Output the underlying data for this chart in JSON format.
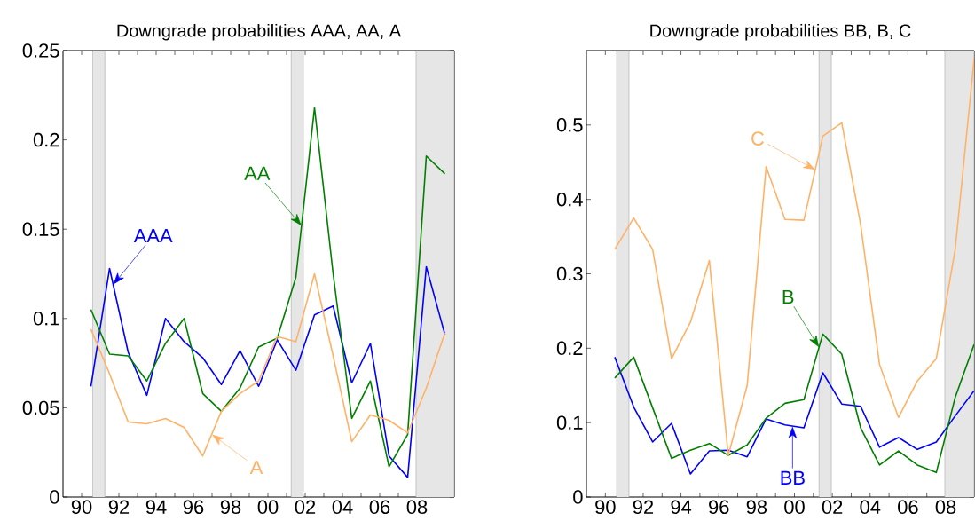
{
  "chart_data": [
    {
      "type": "line",
      "title": "Downgrade probabilities AAA, AA, A",
      "x": [
        1990.5,
        1991.5,
        1992.5,
        1993.5,
        1994.5,
        1995.5,
        1996.5,
        1997.5,
        1998.5,
        1999.5,
        2000.5,
        2001.5,
        2002.5,
        2003.5,
        2004.5,
        2005.5,
        2006.5,
        2007.5,
        2008.5,
        2009.5
      ],
      "series": [
        {
          "color": "#0000ff",
          "values": [
            0.062,
            0.128,
            0.081,
            0.057,
            0.1,
            0.087,
            0.078,
            0.063,
            0.082,
            0.062,
            0.088,
            0.071,
            0.102,
            0.107,
            0.064,
            0.086,
            0.023,
            0.011,
            0.129,
            0.091
          ]
        },
        {
          "color": "#007f00",
          "values": [
            0.105,
            0.08,
            0.079,
            0.065,
            0.086,
            0.1,
            0.058,
            0.048,
            0.061,
            0.084,
            0.089,
            0.123,
            0.218,
            0.125,
            0.044,
            0.065,
            0.017,
            0.035,
            0.191,
            0.181
          ]
        },
        {
          "color": "#ffb266",
          "values": [
            0.094,
            0.069,
            0.042,
            0.041,
            0.044,
            0.039,
            0.023,
            0.048,
            0.058,
            0.065,
            0.09,
            0.087,
            0.125,
            0.079,
            0.031,
            0.046,
            0.043,
            0.036,
            0.061,
            0.092
          ]
        }
      ],
      "xlim": [
        1989,
        2010
      ],
      "ylim": [
        0,
        0.25
      ],
      "xticks": [
        {
          "value": 1990,
          "label": "90"
        },
        {
          "value": 1991,
          "label": null
        },
        {
          "value": 1992,
          "label": "92"
        },
        {
          "value": 1993,
          "label": null
        },
        {
          "value": 1994,
          "label": "94"
        },
        {
          "value": 1995,
          "label": null
        },
        {
          "value": 1996,
          "label": "96"
        },
        {
          "value": 1997,
          "label": null
        },
        {
          "value": 1998,
          "label": "98"
        },
        {
          "value": 1999,
          "label": null
        },
        {
          "value": 2000,
          "label": "00"
        },
        {
          "value": 2001,
          "label": null
        },
        {
          "value": 2002,
          "label": "02"
        },
        {
          "value": 2003,
          "label": null
        },
        {
          "value": 2004,
          "label": "04"
        },
        {
          "value": 2005,
          "label": null
        },
        {
          "value": 2006,
          "label": "06"
        },
        {
          "value": 2007,
          "label": null
        },
        {
          "value": 2008,
          "label": "08"
        },
        {
          "value": 2009,
          "label": null
        }
      ],
      "yticks": [
        0,
        0.05,
        0.1,
        0.15,
        0.2,
        0.25
      ],
      "bands": [
        {
          "axis": "x",
          "from": 1990.6,
          "to": 1991.25,
          "color": "#e6e6e6"
        },
        {
          "axis": "x",
          "from": 2001.25,
          "to": 2001.9,
          "color": "#e6e6e6"
        },
        {
          "axis": "x",
          "from": 2007.95,
          "to": 2010,
          "color": "#e6e6e6"
        }
      ],
      "annotations": [
        {
          "text": "AAA",
          "x": 1991.7,
          "y": 0.119
        },
        {
          "text": "AA",
          "x": 2001.8,
          "y": 0.152
        },
        {
          "text": "A",
          "x": 1997,
          "y": 0.035
        }
      ]
    },
    {
      "type": "line",
      "title": "Downgrade probabilities BB, B, C",
      "x": [
        1990.5,
        1991.5,
        1992.5,
        1993.5,
        1994.5,
        1995.5,
        1996.5,
        1997.5,
        1998.5,
        1999.5,
        2000.5,
        2001.5,
        2002.5,
        2003.5,
        2004.5,
        2005.5,
        2006.5,
        2007.5,
        2008.5,
        2009.5
      ],
      "series": [
        {
          "color": "#0000ff",
          "values": [
            0.188,
            0.121,
            0.074,
            0.099,
            0.031,
            0.062,
            0.063,
            0.054,
            0.105,
            0.097,
            0.093,
            0.167,
            0.125,
            0.122,
            0.067,
            0.08,
            0.064,
            0.074,
            0.109,
            0.143
          ]
        },
        {
          "color": "#007f00",
          "values": [
            0.16,
            0.188,
            0.12,
            0.052,
            0.063,
            0.072,
            0.056,
            0.07,
            0.106,
            0.126,
            0.131,
            0.219,
            0.192,
            0.093,
            0.043,
            0.062,
            0.043,
            0.033,
            0.134,
            0.205
          ]
        },
        {
          "color": "#ffb266",
          "values": [
            0.333,
            0.375,
            0.333,
            0.186,
            0.235,
            0.318,
            0.056,
            0.15,
            0.444,
            0.373,
            0.372,
            0.485,
            0.503,
            0.366,
            0.178,
            0.107,
            0.156,
            0.186,
            0.333,
            0.589
          ]
        }
      ],
      "xlim": [
        1989,
        2009.5
      ],
      "ylim": [
        0,
        0.6
      ],
      "xticks": [
        {
          "value": 1990,
          "label": "90"
        },
        {
          "value": 1991,
          "label": null
        },
        {
          "value": 1992,
          "label": "92"
        },
        {
          "value": 1993,
          "label": null
        },
        {
          "value": 1994,
          "label": "94"
        },
        {
          "value": 1995,
          "label": null
        },
        {
          "value": 1996,
          "label": "96"
        },
        {
          "value": 1997,
          "label": null
        },
        {
          "value": 1998,
          "label": "98"
        },
        {
          "value": 1999,
          "label": null
        },
        {
          "value": 2000,
          "label": "00"
        },
        {
          "value": 2001,
          "label": null
        },
        {
          "value": 2002,
          "label": "02"
        },
        {
          "value": 2003,
          "label": null
        },
        {
          "value": 2004,
          "label": "04"
        },
        {
          "value": 2005,
          "label": null
        },
        {
          "value": 2006,
          "label": "06"
        },
        {
          "value": 2007,
          "label": null
        },
        {
          "value": 2008,
          "label": "08"
        },
        {
          "value": 2009,
          "label": null
        }
      ],
      "yticks": [
        0,
        0.1,
        0.2,
        0.3,
        0.4,
        0.5
      ],
      "bands": [
        {
          "axis": "x",
          "from": 1990.6,
          "to": 1991.25,
          "color": "#e6e6e6"
        },
        {
          "axis": "x",
          "from": 2001.3,
          "to": 2001.95,
          "color": "#e6e6e6"
        },
        {
          "axis": "x",
          "from": 2007.95,
          "to": 2009.5,
          "color": "#e6e6e6"
        }
      ],
      "annotations": [
        {
          "text": "BB",
          "x": 1999.9,
          "y": 0.095
        },
        {
          "text": "B",
          "x": 2001.3,
          "y": 0.201
        },
        {
          "text": "C",
          "x": 2001.1,
          "y": 0.44
        }
      ]
    }
  ]
}
